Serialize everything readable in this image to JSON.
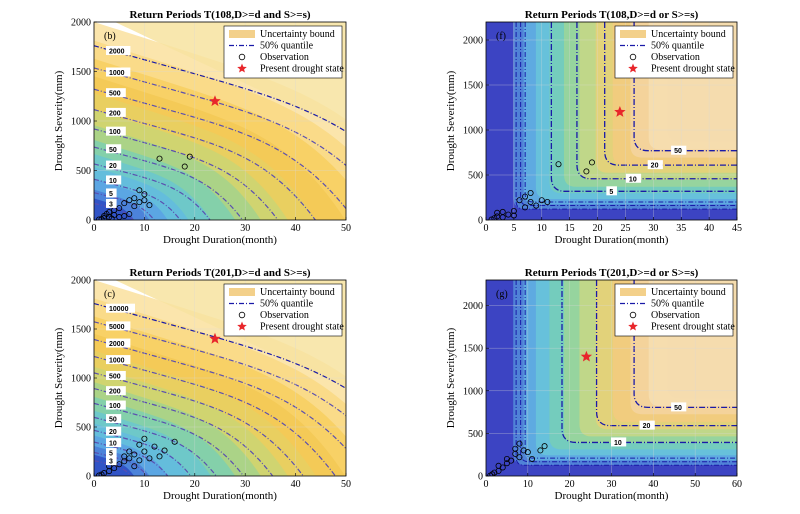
{
  "chart_data": [
    {
      "id": "b",
      "type": "contour",
      "panel_label": "(b)",
      "title": "Return Periods T(108,D>=d and S>=s)",
      "xlabel": "Drought Duration(month)",
      "ylabel": "Drought Severity(mm)",
      "xlim": [
        0,
        50
      ],
      "ylim": [
        0,
        2000
      ],
      "xticks": [
        0,
        10,
        20,
        30,
        40,
        50
      ],
      "yticks": [
        0,
        500,
        1000,
        1500,
        2000
      ],
      "grid": true,
      "legend_position": "top-right",
      "legend": [
        "Uncertainty bound",
        "50% quantile",
        "Observation",
        "Present drought state"
      ],
      "contour_levels": [
        "2000",
        "1000",
        "500",
        "200",
        "100",
        "50",
        "20",
        "10",
        "5",
        "3"
      ],
      "present_state": {
        "x": 24,
        "y": 1200
      },
      "observations": [
        [
          1,
          5
        ],
        [
          1.5,
          10
        ],
        [
          2,
          20
        ],
        [
          2,
          40
        ],
        [
          2.5,
          60
        ],
        [
          3,
          30
        ],
        [
          3,
          80
        ],
        [
          3.5,
          15
        ],
        [
          4,
          50
        ],
        [
          4,
          100
        ],
        [
          5,
          30
        ],
        [
          5,
          120
        ],
        [
          6,
          40
        ],
        [
          6,
          170
        ],
        [
          7,
          200
        ],
        [
          7,
          60
        ],
        [
          8,
          220
        ],
        [
          8,
          140
        ],
        [
          9,
          180
        ],
        [
          9,
          300
        ],
        [
          10,
          200
        ],
        [
          10,
          260
        ],
        [
          11,
          150
        ],
        [
          13,
          620
        ],
        [
          18,
          540
        ],
        [
          19,
          640
        ]
      ]
    },
    {
      "id": "f",
      "type": "contour",
      "panel_label": "(f)",
      "title": "Return Periods T(108,D>=d or S>=s)",
      "xlabel": "Drought Duration(month)",
      "ylabel": "Drought Severity(mm)",
      "xlim": [
        0,
        45
      ],
      "ylim": [
        0,
        2200
      ],
      "xticks": [
        0,
        5,
        10,
        15,
        20,
        25,
        30,
        35,
        40,
        45
      ],
      "yticks": [
        0,
        500,
        1000,
        1500,
        2000
      ],
      "grid": true,
      "legend_position": "top-right",
      "legend": [
        "Uncertainty bound",
        "50% quantile",
        "Observation",
        "Present drought state"
      ],
      "contour_levels": [
        "50",
        "20",
        "10",
        "5"
      ],
      "present_state": {
        "x": 24,
        "y": 1200
      },
      "observations": [
        [
          1,
          5
        ],
        [
          1.5,
          20
        ],
        [
          2,
          40
        ],
        [
          2,
          80
        ],
        [
          3,
          30
        ],
        [
          3,
          90
        ],
        [
          4,
          60
        ],
        [
          5,
          50
        ],
        [
          5,
          100
        ],
        [
          6,
          220
        ],
        [
          7,
          140
        ],
        [
          7,
          260
        ],
        [
          8,
          200
        ],
        [
          8,
          300
        ],
        [
          9,
          160
        ],
        [
          10,
          220
        ],
        [
          11,
          200
        ],
        [
          13,
          620
        ],
        [
          18,
          540
        ],
        [
          19,
          640
        ]
      ]
    },
    {
      "id": "c",
      "type": "contour",
      "panel_label": "(c)",
      "title": "Return Periods T(201,D>=d and S>=s)",
      "xlabel": "Drought Duration(month)",
      "ylabel": "Drought Severity(mm)",
      "xlim": [
        0,
        50
      ],
      "ylim": [
        0,
        2000
      ],
      "xticks": [
        0,
        10,
        20,
        30,
        40,
        50
      ],
      "yticks": [
        0,
        500,
        1000,
        1500,
        2000
      ],
      "grid": true,
      "legend_position": "top-right",
      "legend": [
        "Uncertainty bound",
        "50% quantile",
        "Observation",
        "Present drought state"
      ],
      "contour_levels": [
        "10000",
        "5000",
        "2000",
        "1000",
        "500",
        "200",
        "100",
        "50",
        "20",
        "10",
        "5",
        "3"
      ],
      "present_state": {
        "x": 24,
        "y": 1400
      },
      "observations": [
        [
          1,
          5
        ],
        [
          1.5,
          15
        ],
        [
          2,
          30
        ],
        [
          3,
          50
        ],
        [
          3,
          100
        ],
        [
          4,
          80
        ],
        [
          5,
          120
        ],
        [
          6,
          150
        ],
        [
          6,
          200
        ],
        [
          7,
          180
        ],
        [
          7,
          250
        ],
        [
          8,
          100
        ],
        [
          8,
          220
        ],
        [
          9,
          160
        ],
        [
          9,
          320
        ],
        [
          10,
          250
        ],
        [
          10,
          380
        ],
        [
          11,
          180
        ],
        [
          12,
          300
        ],
        [
          13,
          200
        ],
        [
          14,
          260
        ],
        [
          16,
          350
        ]
      ]
    },
    {
      "id": "g",
      "type": "contour",
      "panel_label": "(g)",
      "title": "Return Periods T(201,D>=d or S>=s)",
      "xlabel": "Drought Duration(month)",
      "ylabel": "Drought Severity(mm)",
      "xlim": [
        0,
        60
      ],
      "ylim": [
        0,
        2300
      ],
      "xticks": [
        0,
        10,
        20,
        30,
        40,
        50,
        60
      ],
      "yticks": [
        0,
        500,
        1000,
        1500,
        2000
      ],
      "grid": true,
      "legend_position": "top-right",
      "legend": [
        "Uncertainty bound",
        "50% quantile",
        "Observation",
        "Present drought state"
      ],
      "contour_levels": [
        "50",
        "20",
        "10"
      ],
      "present_state": {
        "x": 24,
        "y": 1400
      },
      "observations": [
        [
          1,
          5
        ],
        [
          1.5,
          20
        ],
        [
          2,
          40
        ],
        [
          3,
          60
        ],
        [
          3,
          120
        ],
        [
          4,
          100
        ],
        [
          5,
          150
        ],
        [
          5,
          200
        ],
        [
          6,
          180
        ],
        [
          7,
          260
        ],
        [
          7,
          320
        ],
        [
          8,
          220
        ],
        [
          8,
          380
        ],
        [
          9,
          300
        ],
        [
          10,
          280
        ],
        [
          11,
          200
        ],
        [
          13,
          300
        ],
        [
          14,
          350
        ]
      ]
    }
  ]
}
